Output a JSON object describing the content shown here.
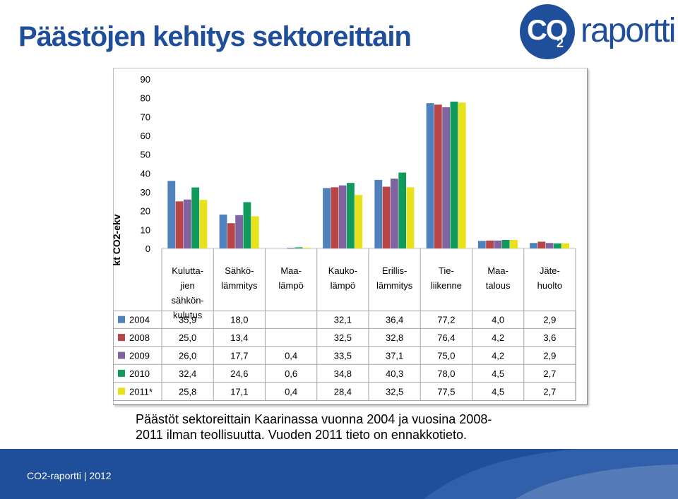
{
  "page": {
    "title": "Päästöjen kehitys sektoreittain"
  },
  "logo": {
    "co": "CO",
    "sub": "2",
    "word": "raportti"
  },
  "chart_data": {
    "type": "bar",
    "ylabel": "kt CO2-ekv",
    "ylim": [
      0,
      90
    ],
    "yticks": [
      0,
      10,
      20,
      30,
      40,
      50,
      60,
      70,
      80,
      90
    ],
    "grid": false,
    "legend": "table",
    "categories": [
      [
        "Kulutta-",
        "jien",
        "sähkön-",
        "kulutus"
      ],
      [
        "Sähkö-",
        "lämmitys"
      ],
      [
        "Maa-",
        "lämpö"
      ],
      [
        "Kauko-",
        "lämpö"
      ],
      [
        "Erillis-",
        "lämmitys"
      ],
      [
        "Tie-",
        "liikenne"
      ],
      [
        "Maa-",
        "talous"
      ],
      [
        "Jäte-",
        "huolto"
      ]
    ],
    "series": [
      {
        "name": "2004",
        "color": "#4f81bd",
        "values": [
          35.9,
          18.0,
          null,
          32.1,
          36.4,
          77.2,
          4.0,
          2.9
        ],
        "labels": [
          "35,9",
          "18,0",
          "",
          "32,1",
          "36,4",
          "77,2",
          "4,0",
          "2,9"
        ]
      },
      {
        "name": "2008",
        "color": "#b94646",
        "values": [
          25.0,
          13.4,
          null,
          32.5,
          32.8,
          76.4,
          4.2,
          3.6
        ],
        "labels": [
          "25,0",
          "13,4",
          "",
          "32,5",
          "32,8",
          "76,4",
          "4,2",
          "3,6"
        ]
      },
      {
        "name": "2009",
        "color": "#8064a2",
        "values": [
          26.0,
          17.7,
          0.4,
          33.5,
          37.1,
          75.0,
          4.2,
          2.9
        ],
        "labels": [
          "26,0",
          "17,7",
          "0,4",
          "33,5",
          "37,1",
          "75,0",
          "4,2",
          "2,9"
        ]
      },
      {
        "name": "2010",
        "color": "#109a5c",
        "values": [
          32.4,
          24.6,
          0.6,
          34.8,
          40.3,
          78.0,
          4.5,
          2.7
        ],
        "labels": [
          "32,4",
          "24,6",
          "0,6",
          "34,8",
          "40,3",
          "78,0",
          "4,5",
          "2,7"
        ]
      },
      {
        "name": "2011*",
        "color": "#e8e21c",
        "values": [
          25.8,
          17.1,
          0.4,
          28.4,
          32.5,
          77.5,
          4.5,
          2.7
        ],
        "labels": [
          "25,8",
          "17,1",
          "0,4",
          "28,4",
          "32,5",
          "77,5",
          "4,5",
          "2,7"
        ]
      }
    ]
  },
  "caption": {
    "line1": "Päästöt sektoreittain Kaarinassa  vuonna 2004 ja vuosina 2008-",
    "line2": "2011   ilman teollisuutta. Vuoden 2011 tieto on ennakkotieto."
  },
  "footer": {
    "text": "CO2-raportti  |  2012"
  }
}
